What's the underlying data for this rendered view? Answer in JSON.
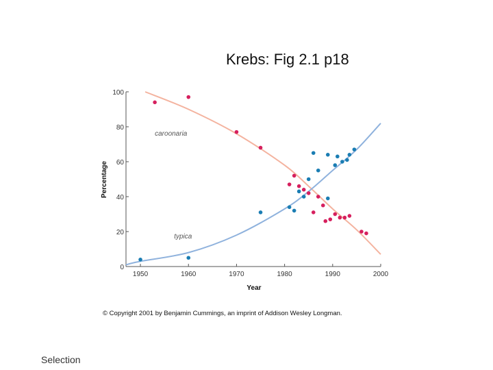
{
  "slide": {
    "title": "Krebs: Fig 2.1 p18",
    "copyright": "© Copyright 2001 by Benjamin Cummings, an imprint of Addison Wesley Longman.",
    "footer_label": "Selection"
  },
  "colors": {
    "carbonaria_points": "#d6205e",
    "typica_points": "#1a7db3",
    "carbonaria_curve": "#f4b39f",
    "typica_curve": "#8fb2dd",
    "axis": "#555555"
  },
  "chart_data": {
    "type": "scatter",
    "xlabel": "Year",
    "ylabel": "Percentage",
    "xlim": [
      1947,
      2000
    ],
    "ylim": [
      0,
      100
    ],
    "x_ticks": [
      1950,
      1960,
      1970,
      1980,
      1990,
      2000
    ],
    "y_ticks": [
      0,
      20,
      40,
      60,
      80,
      100
    ],
    "grid": false,
    "series": [
      {
        "name": "carbonaria",
        "color": "#d6205e",
        "points": [
          [
            1953,
            94
          ],
          [
            1960,
            97
          ],
          [
            1970,
            77
          ],
          [
            1975,
            68
          ],
          [
            1981,
            47
          ],
          [
            1982,
            52
          ],
          [
            1983,
            46
          ],
          [
            1984,
            44
          ],
          [
            1985,
            42
          ],
          [
            1986,
            31
          ],
          [
            1987,
            40
          ],
          [
            1988,
            35
          ],
          [
            1988.5,
            26
          ],
          [
            1989.5,
            27
          ],
          [
            1990.5,
            30
          ],
          [
            1991.5,
            28
          ],
          [
            1992.5,
            28
          ],
          [
            1993.5,
            29
          ],
          [
            1996,
            20
          ],
          [
            1997,
            19
          ]
        ],
        "trend": [
          [
            1951,
            100
          ],
          [
            1960,
            90
          ],
          [
            1970,
            76
          ],
          [
            1980,
            58
          ],
          [
            1985,
            46
          ],
          [
            1990,
            33
          ],
          [
            1995,
            21
          ],
          [
            2000,
            7
          ]
        ]
      },
      {
        "name": "typica",
        "color": "#1a7db3",
        "points": [
          [
            1950,
            4
          ],
          [
            1960,
            5
          ],
          [
            1975,
            31
          ],
          [
            1981,
            34
          ],
          [
            1982,
            32
          ],
          [
            1983,
            43
          ],
          [
            1984,
            40
          ],
          [
            1985,
            50
          ],
          [
            1986,
            65
          ],
          [
            1987,
            55
          ],
          [
            1989,
            39
          ],
          [
            1989,
            64
          ],
          [
            1990.5,
            58
          ],
          [
            1991,
            63
          ],
          [
            1992,
            60
          ],
          [
            1993,
            61
          ],
          [
            1993.5,
            64
          ],
          [
            1994.5,
            67
          ]
        ],
        "trend": [
          [
            1947,
            1
          ],
          [
            1950,
            3
          ],
          [
            1960,
            8
          ],
          [
            1970,
            18
          ],
          [
            1980,
            33
          ],
          [
            1985,
            43
          ],
          [
            1990,
            55
          ],
          [
            1995,
            67
          ],
          [
            2000,
            82
          ]
        ]
      }
    ],
    "curve_labels": [
      {
        "series": "carbonaria",
        "text": "caroonaria",
        "x": 1953,
        "y": 75
      },
      {
        "series": "typica",
        "text": "typica",
        "x": 1957,
        "y": 16
      }
    ]
  }
}
